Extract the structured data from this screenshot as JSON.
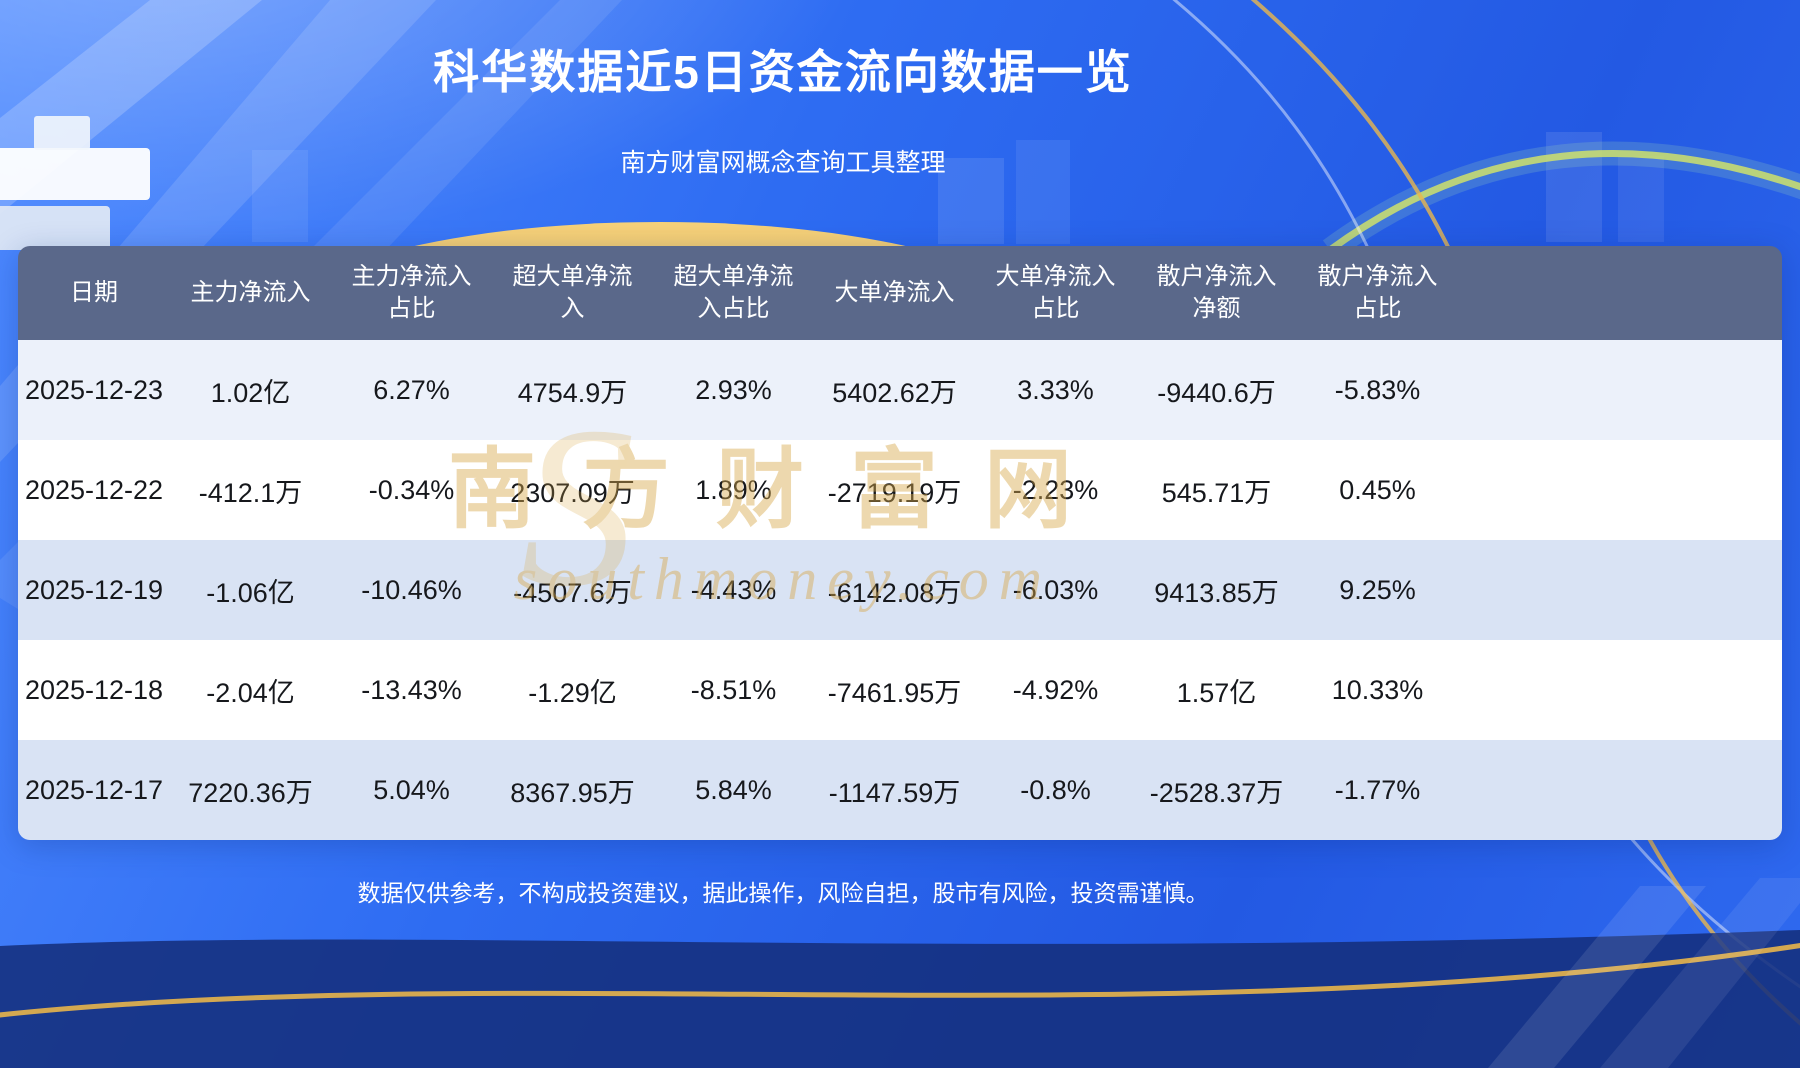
{
  "page": {
    "title": "科华数据近5日资金流向数据一览",
    "subtitle": "南方财富网概念查询工具整理",
    "disclaimer": "数据仅供参考，不构成投资建议，据此操作，风险自担，股市有风险，投资需谨慎。",
    "watermark": {
      "initial": "S",
      "cn": "南方财富网",
      "en": "southmoney.com"
    }
  },
  "colors": {
    "page_blue": "#2e6cf2",
    "header_bg": "#5a688a",
    "row_tint": "#d9e3f4",
    "row_tint_light": "#ecf1fa",
    "watermark_gold": "#d7a84a",
    "gold_accent": "#e9b64d",
    "navy_band": "#142f7c",
    "text_dark": "#16181c"
  },
  "chart_data": {
    "type": "table",
    "title": "科华数据近5日资金流向数据一览",
    "columns": [
      "日期",
      "主力净流入",
      "主力净流入\n占比",
      "超大单净流\n入",
      "超大单净流\n入占比",
      "大单净流入",
      "大单净流入\n占比",
      "散户净流入\n净额",
      "散户净流入\n占比"
    ],
    "rows": [
      [
        "2025-12-23",
        "1.02亿",
        "6.27%",
        "4754.9万",
        "2.93%",
        "5402.62万",
        "3.33%",
        "-9440.6万",
        "-5.83%"
      ],
      [
        "2025-12-22",
        "-412.1万",
        "-0.34%",
        "2307.09万",
        "1.89%",
        "-2719.19万",
        "-2.23%",
        "545.71万",
        "0.45%"
      ],
      [
        "2025-12-19",
        "-1.06亿",
        "-10.46%",
        "-4507.6万",
        "-4.43%",
        "-6142.08万",
        "-6.03%",
        "9413.85万",
        "9.25%"
      ],
      [
        "2025-12-18",
        "-2.04亿",
        "-13.43%",
        "-1.29亿",
        "-8.51%",
        "-7461.95万",
        "-4.92%",
        "1.57亿",
        "10.33%"
      ],
      [
        "2025-12-17",
        "7220.36万",
        "5.04%",
        "8367.95万",
        "5.84%",
        "-1147.59万",
        "-0.8%",
        "-2528.37万",
        "-1.77%"
      ]
    ]
  }
}
